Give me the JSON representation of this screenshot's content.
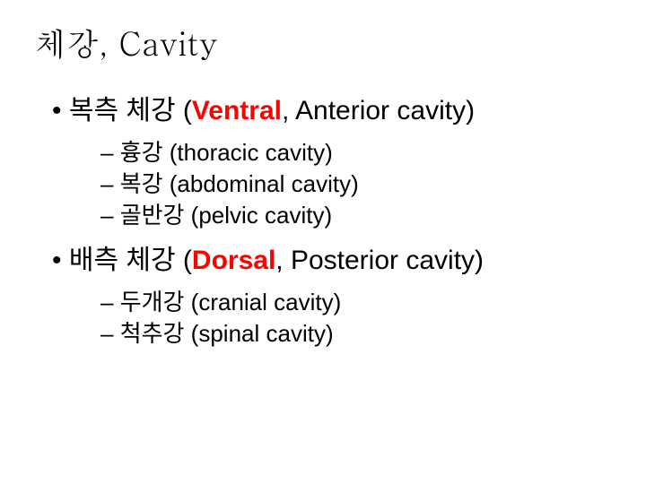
{
  "title": "체강, Cavity",
  "section1": {
    "header_prefix": "복측 체강 ",
    "header_paren_open": "(",
    "header_emph": "Ventral",
    "header_rest": ", Anterior cavity)",
    "items": [
      {
        "ko": "흉강 ",
        "en": "(thoracic cavity)"
      },
      {
        "ko": "복강 ",
        "en": "(abdominal cavity)"
      },
      {
        "ko": "골반강 ",
        "en": "(pelvic cavity)"
      }
    ]
  },
  "section2": {
    "header_prefix": "배측 체강 ",
    "header_paren_open": "(",
    "header_emph": "Dorsal",
    "header_rest": ", Posterior cavity)",
    "items": [
      {
        "ko": "두개강 ",
        "en": "(cranial cavity)"
      },
      {
        "ko": "척추강 ",
        "en": "(spinal cavity)"
      }
    ]
  },
  "colors": {
    "text": "#000000",
    "emphasis": "#ff0000",
    "background": "#ffffff"
  },
  "fonts": {
    "title_family": "serif",
    "body_family": "sans-serif",
    "title_size_pt": 28,
    "l1_size_pt": 23,
    "l2_size_pt": 20
  }
}
